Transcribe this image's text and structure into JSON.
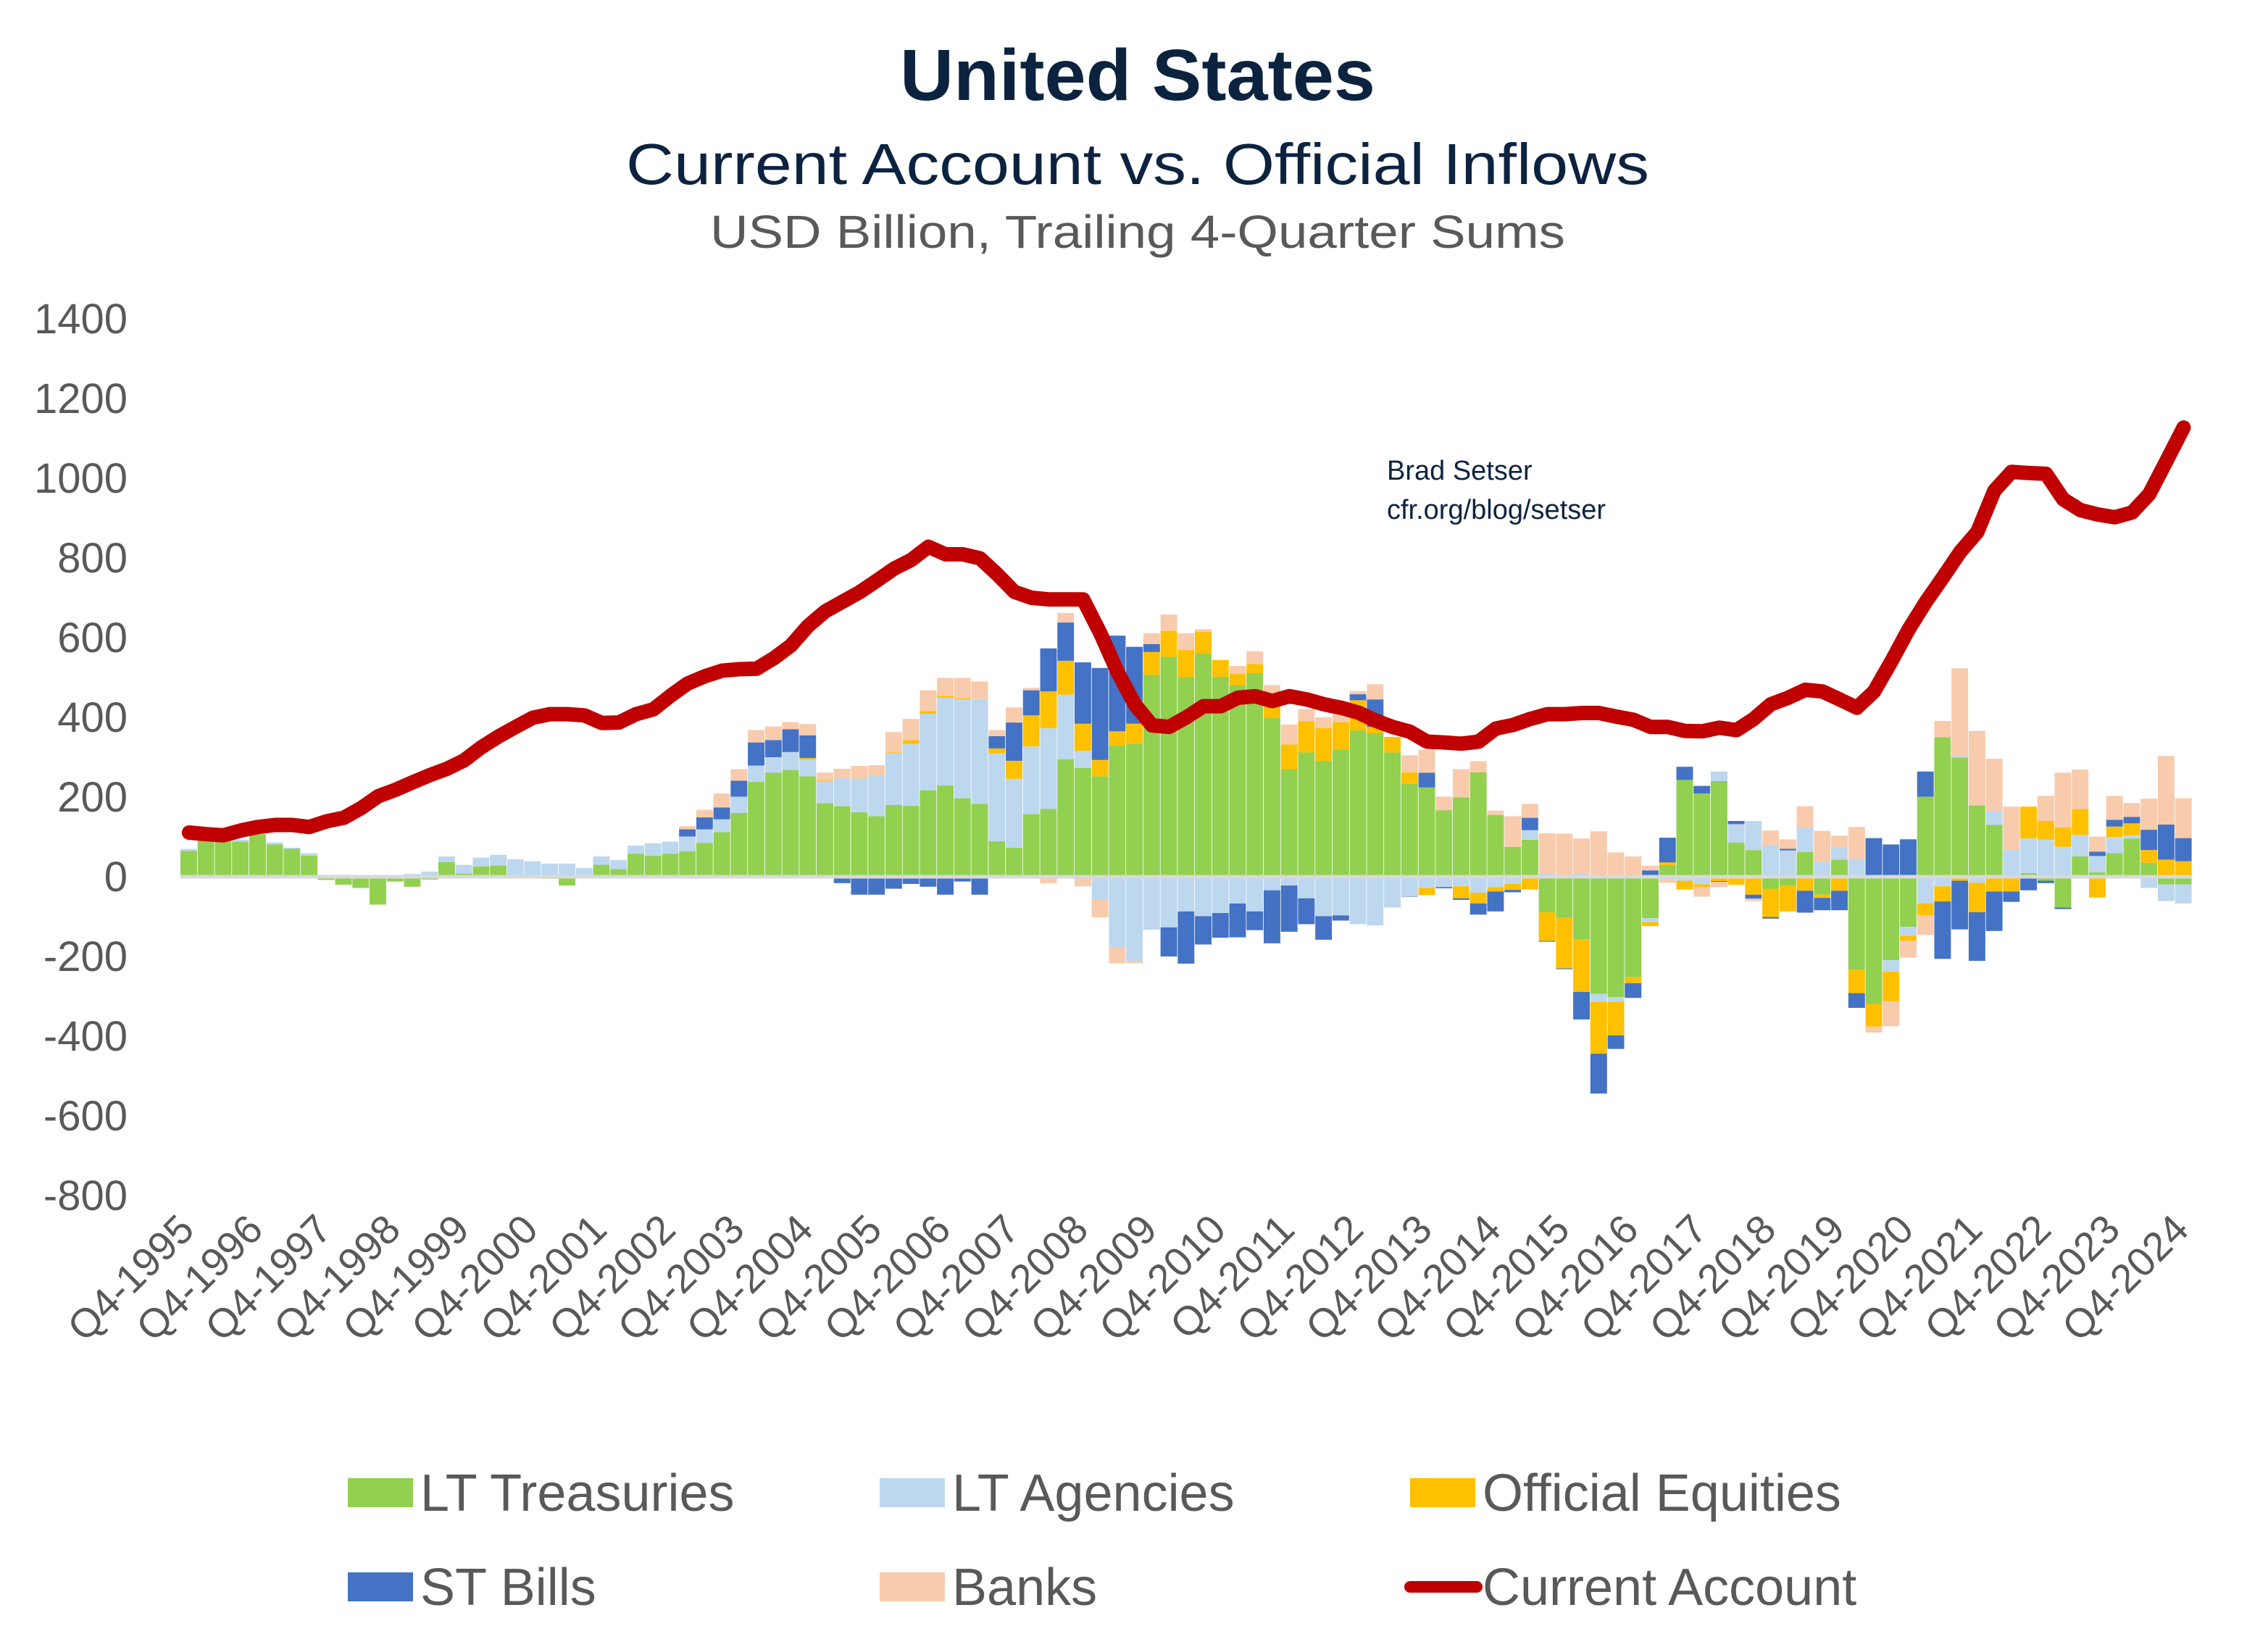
{
  "header": {
    "title": "United States",
    "subtitle": "Current Account vs. Official Inflows",
    "units": "USD Billion, Trailing 4-Quarter Sums"
  },
  "annotation": {
    "author": "Brad Setser",
    "source": "cfr.org/blog/setser"
  },
  "chart_data": {
    "type": "bar",
    "stacked": true,
    "overlay_line": "Current Account",
    "frequency": "quarterly",
    "ylim": [
      -800,
      1400
    ],
    "y_ticks": [
      "1400",
      "1200",
      "1000",
      "800",
      "600",
      "400",
      "200",
      "0",
      "-200",
      "-400",
      "-600",
      "-800"
    ],
    "y_tick_values": [
      1400,
      1200,
      1000,
      800,
      600,
      400,
      200,
      0,
      -200,
      -400,
      -600,
      -800
    ],
    "x_tick_labels": [
      "Q4-1995",
      "Q4-1996",
      "Q4-1997",
      "Q4-1998",
      "Q4-1999",
      "Q4-2000",
      "Q4-2001",
      "Q4-2002",
      "Q4-2003",
      "Q4-2004",
      "Q4-2005",
      "Q4-2006",
      "Q4-2007",
      "Q4-2008",
      "Q4-2009",
      "Q4-2010",
      "Q4-2011",
      "Q4-2012",
      "Q4-2013",
      "Q4-2014",
      "Q4-2015",
      "Q4-2016",
      "Q4-2017",
      "Q4-2018",
      "Q4-2019",
      "Q4-2020",
      "Q4-2021",
      "Q4-2022",
      "Q4-2023",
      "Q4-2024"
    ],
    "grid": false,
    "legend_position": "bottom",
    "series": [
      {
        "name": "LT Treasuries",
        "kind": "bar",
        "color": "#92D050",
        "values": [
          65,
          93,
          90,
          88,
          107,
          81,
          70,
          53,
          -8,
          -20,
          -28,
          -70,
          -12,
          -25,
          -7,
          37,
          8,
          26,
          28,
          3,
          -3,
          -5,
          -22,
          0,
          30,
          19,
          58,
          53,
          58,
          64,
          85,
          112,
          160,
          238,
          261,
          268,
          252,
          185,
          177,
          162,
          152,
          180,
          178,
          217,
          229,
          197,
          183,
          89,
          73,
          157,
          170,
          295,
          273,
          252,
          329,
          334,
          507,
          552,
          501,
          560,
          502,
          481,
          511,
          398,
          270,
          312,
          291,
          319,
          367,
          360,
          312,
          233,
          224,
          167,
          199,
          262,
          155,
          75,
          93,
          -89,
          -103,
          -157,
          -294,
          -302,
          -252,
          -104,
          29,
          243,
          209,
          240,
          86,
          67,
          -30,
          -22,
          62,
          -45,
          43,
          -233,
          -319,
          -209,
          -126,
          201,
          350,
          299,
          179,
          130,
          0,
          9,
          -10,
          -77,
          51,
          11,
          59,
          96,
          35,
          -19,
          -19
        ]
      },
      {
        "name": "LT Agencies",
        "kind": "bar",
        "color": "#BDD7EE",
        "values": [
          5,
          3,
          3,
          5,
          0,
          5,
          3,
          6,
          2,
          5,
          4,
          0,
          3,
          7,
          13,
          14,
          22,
          22,
          27,
          41,
          39,
          33,
          33,
          22,
          21,
          23,
          20,
          31,
          30,
          37,
          34,
          32,
          41,
          41,
          39,
          45,
          42,
          54,
          70,
          85,
          101,
          130,
          155,
          192,
          220,
          248,
          263,
          221,
          173,
          170,
          203,
          162,
          43,
          -57,
          -178,
          -211,
          -133,
          -127,
          -87,
          -99,
          -91,
          -67,
          -87,
          -34,
          -22,
          -54,
          -99,
          -97,
          -119,
          -122,
          -77,
          -49,
          -28,
          -26,
          -24,
          -40,
          -26,
          -18,
          24,
          9,
          0,
          9,
          -20,
          -12,
          0,
          -10,
          -7,
          -10,
          -19,
          24,
          46,
          73,
          79,
          66,
          61,
          37,
          32,
          45,
          0,
          -29,
          -22,
          -67,
          -24,
          4,
          -15,
          35,
          67,
          87,
          93,
          75,
          54,
          41,
          41,
          8,
          -28,
          -42,
          -48
        ]
      },
      {
        "name": "Official Equities",
        "kind": "bar",
        "color": "#FFC000",
        "values": [
          0,
          0,
          0,
          0,
          0,
          0,
          0,
          0,
          0,
          0,
          0,
          0,
          0,
          0,
          0,
          0,
          0,
          0,
          0,
          0,
          0,
          0,
          0,
          0,
          0,
          0,
          0,
          0,
          0,
          0,
          0,
          0,
          0,
          0,
          0,
          0,
          4,
          2,
          0,
          1,
          1,
          2,
          10,
          7,
          5,
          3,
          0,
          12,
          45,
          78,
          92,
          85,
          68,
          41,
          36,
          50,
          57,
          65,
          68,
          55,
          42,
          28,
          23,
          30,
          62,
          78,
          82,
          69,
          76,
          16,
          39,
          29,
          -18,
          0,
          -30,
          -27,
          -11,
          -15,
          -32,
          -72,
          -127,
          -132,
          -130,
          -84,
          -15,
          -10,
          7,
          -22,
          -7,
          -11,
          -20,
          -45,
          -71,
          -65,
          -35,
          -8,
          -35,
          -59,
          -57,
          -74,
          -12,
          -30,
          -38,
          -10,
          -74,
          -37,
          -37,
          80,
          47,
          49,
          65,
          -52,
          26,
          30,
          32,
          43,
          39
        ]
      },
      {
        "name": "ST Bills",
        "kind": "bar",
        "color": "#4472C4",
        "values": [
          0,
          0,
          0,
          0,
          0,
          0,
          0,
          0,
          0,
          0,
          0,
          0,
          0,
          0,
          0,
          0,
          0,
          0,
          0,
          0,
          0,
          0,
          0,
          0,
          0,
          0,
          0,
          0,
          0,
          18,
          30,
          30,
          40,
          58,
          43,
          57,
          57,
          0,
          -16,
          -45,
          -45,
          -30,
          -18,
          -25,
          -45,
          -12,
          -45,
          31,
          96,
          63,
          108,
          96,
          154,
          231,
          240,
          193,
          20,
          -73,
          -131,
          -71,
          -62,
          -85,
          -47,
          -133,
          -116,
          -65,
          -59,
          -13,
          15,
          69,
          0,
          -1,
          37,
          -3,
          -4,
          -28,
          -50,
          -6,
          31,
          -2,
          -2,
          -69,
          -100,
          -34,
          -37,
          16,
          62,
          33,
          19,
          -2,
          8,
          -10,
          -4,
          4,
          -55,
          -31,
          -49,
          -37,
          97,
          81,
          94,
          63,
          -144,
          -122,
          -122,
          -99,
          -26,
          -34,
          -6,
          -4,
          0,
          11,
          17,
          16,
          51,
          88,
          58
        ]
      },
      {
        "name": "Banks",
        "kind": "bar",
        "color": "#F8CBAD",
        "values": [
          0,
          0,
          0,
          0,
          0,
          0,
          0,
          0,
          0,
          0,
          0,
          0,
          0,
          0,
          0,
          0,
          0,
          0,
          0,
          0,
          0,
          0,
          0,
          0,
          0,
          0,
          0,
          0,
          0,
          8,
          19,
          35,
          29,
          31,
          34,
          18,
          28,
          20,
          24,
          30,
          26,
          51,
          53,
          52,
          45,
          51,
          44,
          15,
          38,
          6,
          -16,
          24,
          -24,
          -45,
          -39,
          -6,
          27,
          41,
          42,
          6,
          0,
          20,
          32,
          53,
          50,
          31,
          27,
          22,
          8,
          38,
          0,
          43,
          58,
          34,
          71,
          28,
          11,
          77,
          35,
          100,
          108,
          87,
          114,
          61,
          51,
          12,
          -8,
          0,
          -24,
          -13,
          0,
          -6,
          37,
          24,
          54,
          78,
          28,
          80,
          -15,
          -63,
          -43,
          -49,
          41,
          220,
          187,
          131,
          109,
          0,
          63,
          137,
          99,
          38,
          60,
          35,
          78,
          172,
          100
        ]
      },
      {
        "name": "Current Account",
        "kind": "line",
        "color": "#C00000",
        "values": [
          111,
          107,
          104,
          116,
          125,
          130,
          130,
          125,
          139,
          148,
          172,
          202,
          218,
          237,
          255,
          271,
          292,
          325,
          352,
          376,
          399,
          408,
          408,
          405,
          386,
          387,
          408,
          420,
          454,
          485,
          503,
          517,
          521,
          522,
          548,
          580,
          629,
          666,
          690,
          714,
          743,
          773,
          795,
          828,
          809,
          809,
          799,
          759,
          715,
          700,
          696,
          696,
          696,
          611,
          514,
          433,
          380,
          376,
          400,
          428,
          428,
          449,
          453,
          441,
          453,
          445,
          433,
          424,
          412,
          392,
          376,
          364,
          339,
          337,
          334,
          339,
          372,
          381,
          396,
          408,
          408,
          411,
          411,
          402,
          394,
          376,
          376,
          366,
          365,
          374,
          368,
          396,
          433,
          449,
          469,
          465,
          445,
          424,
          465,
          540,
          620,
          689,
          751,
          815,
          865,
          969,
          1016,
          1013,
          1011,
          947,
          920,
          909,
          902,
          914,
          960,
          1043,
          1127
        ]
      }
    ]
  },
  "legend": {
    "items": [
      {
        "label": "LT Treasuries",
        "color": "#92D050",
        "symbol": "box"
      },
      {
        "label": "LT Agencies",
        "color": "#BDD7EE",
        "symbol": "box"
      },
      {
        "label": "Official Equities",
        "color": "#FFC000",
        "symbol": "box"
      },
      {
        "label": "ST Bills",
        "color": "#4472C4",
        "symbol": "box"
      },
      {
        "label": "Banks",
        "color": "#F8CBAD",
        "symbol": "box"
      },
      {
        "label": "Current Account",
        "color": "#C00000",
        "symbol": "line"
      }
    ]
  }
}
